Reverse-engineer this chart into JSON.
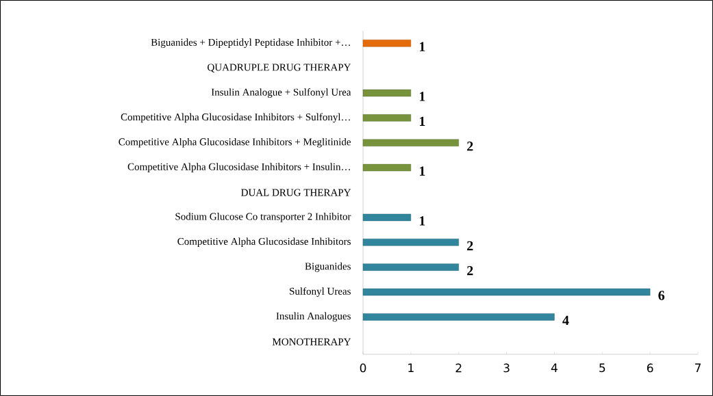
{
  "chart_data": {
    "type": "bar",
    "orientation": "horizontal",
    "categories": [
      "Biguanides + Dipeptidyl Peptidase Inhibitor +…",
      "QUADRUPLE DRUG THERAPY",
      "Insulin Analogue + Sulfonyl Urea",
      "Competitive Alpha Glucosidase Inhibitors + Sulfonyl…",
      "Competitive Alpha Glucosidase Inhibitors + Meglitinide",
      "Competitive Alpha Glucosidase Inhibitors + Insulin…",
      "DUAL DRUG THERAPY",
      "Sodium Glucose Co transporter 2 Inhibitor",
      "Competitive Alpha Glucosidase Inhibitors",
      "Biguanides",
      "Sulfonyl Ureas",
      "Insulin Analogues",
      "MONOTHERAPY"
    ],
    "values": [
      1,
      null,
      1,
      1,
      2,
      1,
      null,
      1,
      2,
      2,
      6,
      4,
      null
    ],
    "colors": [
      "#e46c0a",
      null,
      "#77933c",
      "#77933c",
      "#77933c",
      "#77933c",
      null,
      "#31859c",
      "#31859c",
      "#31859c",
      "#31859c",
      "#31859c",
      null
    ],
    "xlim": [
      0,
      7
    ],
    "xticks": [
      0,
      1,
      2,
      3,
      4,
      5,
      6,
      7
    ],
    "data_labels": true
  }
}
